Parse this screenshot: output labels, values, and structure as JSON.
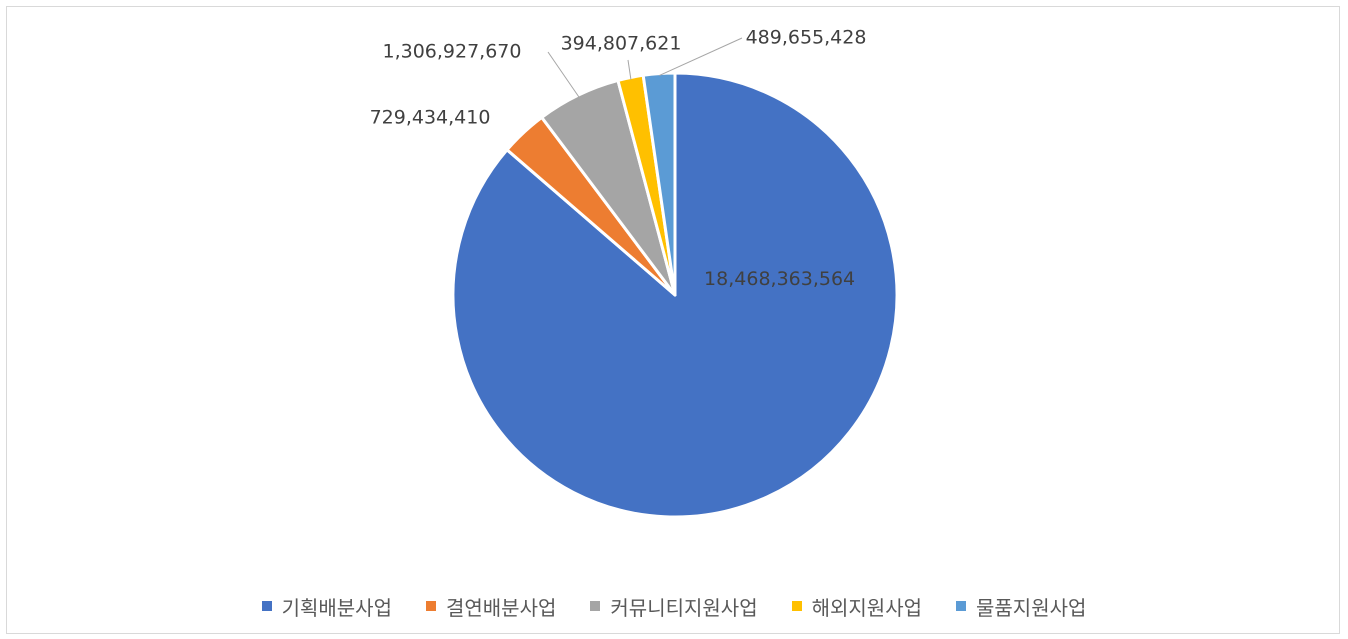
{
  "chart_data": {
    "type": "pie",
    "title": "",
    "start_angle_deg": 0,
    "direction": "clockwise",
    "legend_position": "bottom",
    "slices": [
      {
        "name": "기획배분사업",
        "value": 18468363564,
        "label": "18,468,363,564",
        "color": "#4472C4"
      },
      {
        "name": "결연배분사업",
        "value": 729434410,
        "label": "729,434,410",
        "color": "#ED7D31"
      },
      {
        "name": "커뮤니티지원사업",
        "value": 1306927670,
        "label": "1,306,927,670",
        "color": "#A5A5A5"
      },
      {
        "name": "해외지원사업",
        "value": 394807621,
        "label": "394,807,621",
        "color": "#FFC000"
      },
      {
        "name": "물품지원사업",
        "value": 489655428,
        "label": "489,655,428",
        "color": "#5B9BD5"
      }
    ]
  }
}
